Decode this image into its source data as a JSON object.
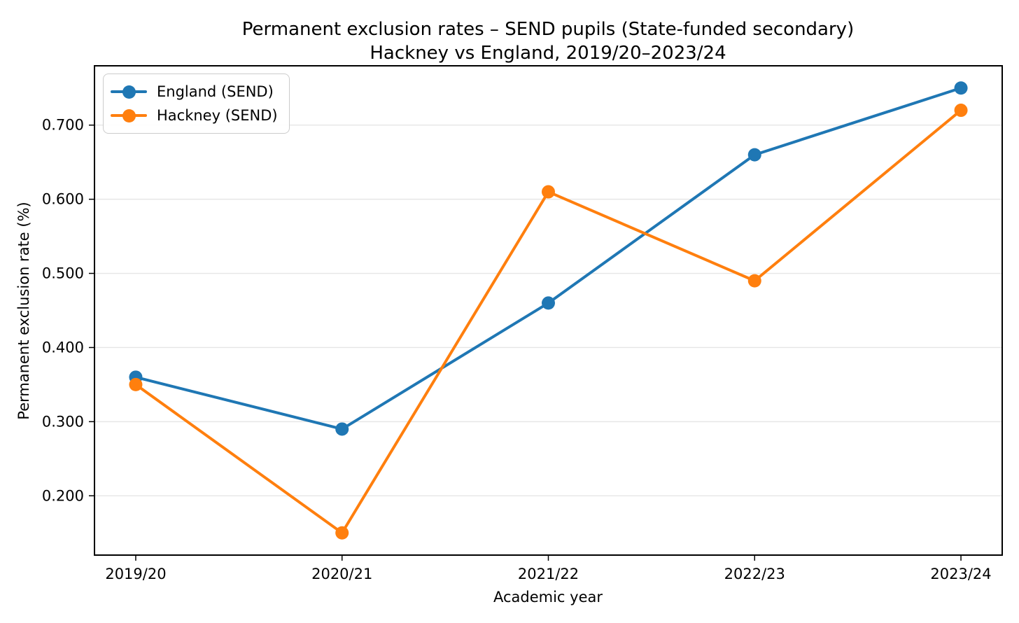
{
  "chart_data": {
    "type": "line",
    "title_line1": "Permanent exclusion rates – SEND pupils (State-funded secondary)",
    "title_line2": "Hackney vs England, 2019/20–2023/24",
    "xlabel": "Academic year",
    "ylabel": "Permanent exclusion rate (%)",
    "categories": [
      "2019/20",
      "2020/21",
      "2021/22",
      "2022/23",
      "2023/24"
    ],
    "series": [
      {
        "name": "England (SEND)",
        "color": "#1f77b4",
        "values": [
          0.36,
          0.29,
          0.46,
          0.66,
          0.75
        ]
      },
      {
        "name": "Hackney (SEND)",
        "color": "#ff7f0e",
        "values": [
          0.35,
          0.15,
          0.61,
          0.49,
          0.72
        ]
      }
    ],
    "yticks": [
      "0.200",
      "0.300",
      "0.400",
      "0.500",
      "0.600",
      "0.700"
    ],
    "ylim": [
      0.12,
      0.78
    ],
    "grid": "horizontal",
    "legend_position": "upper-left",
    "colors": {
      "grid": "#e6e6e6",
      "axis": "#000000",
      "background": "#ffffff"
    }
  }
}
